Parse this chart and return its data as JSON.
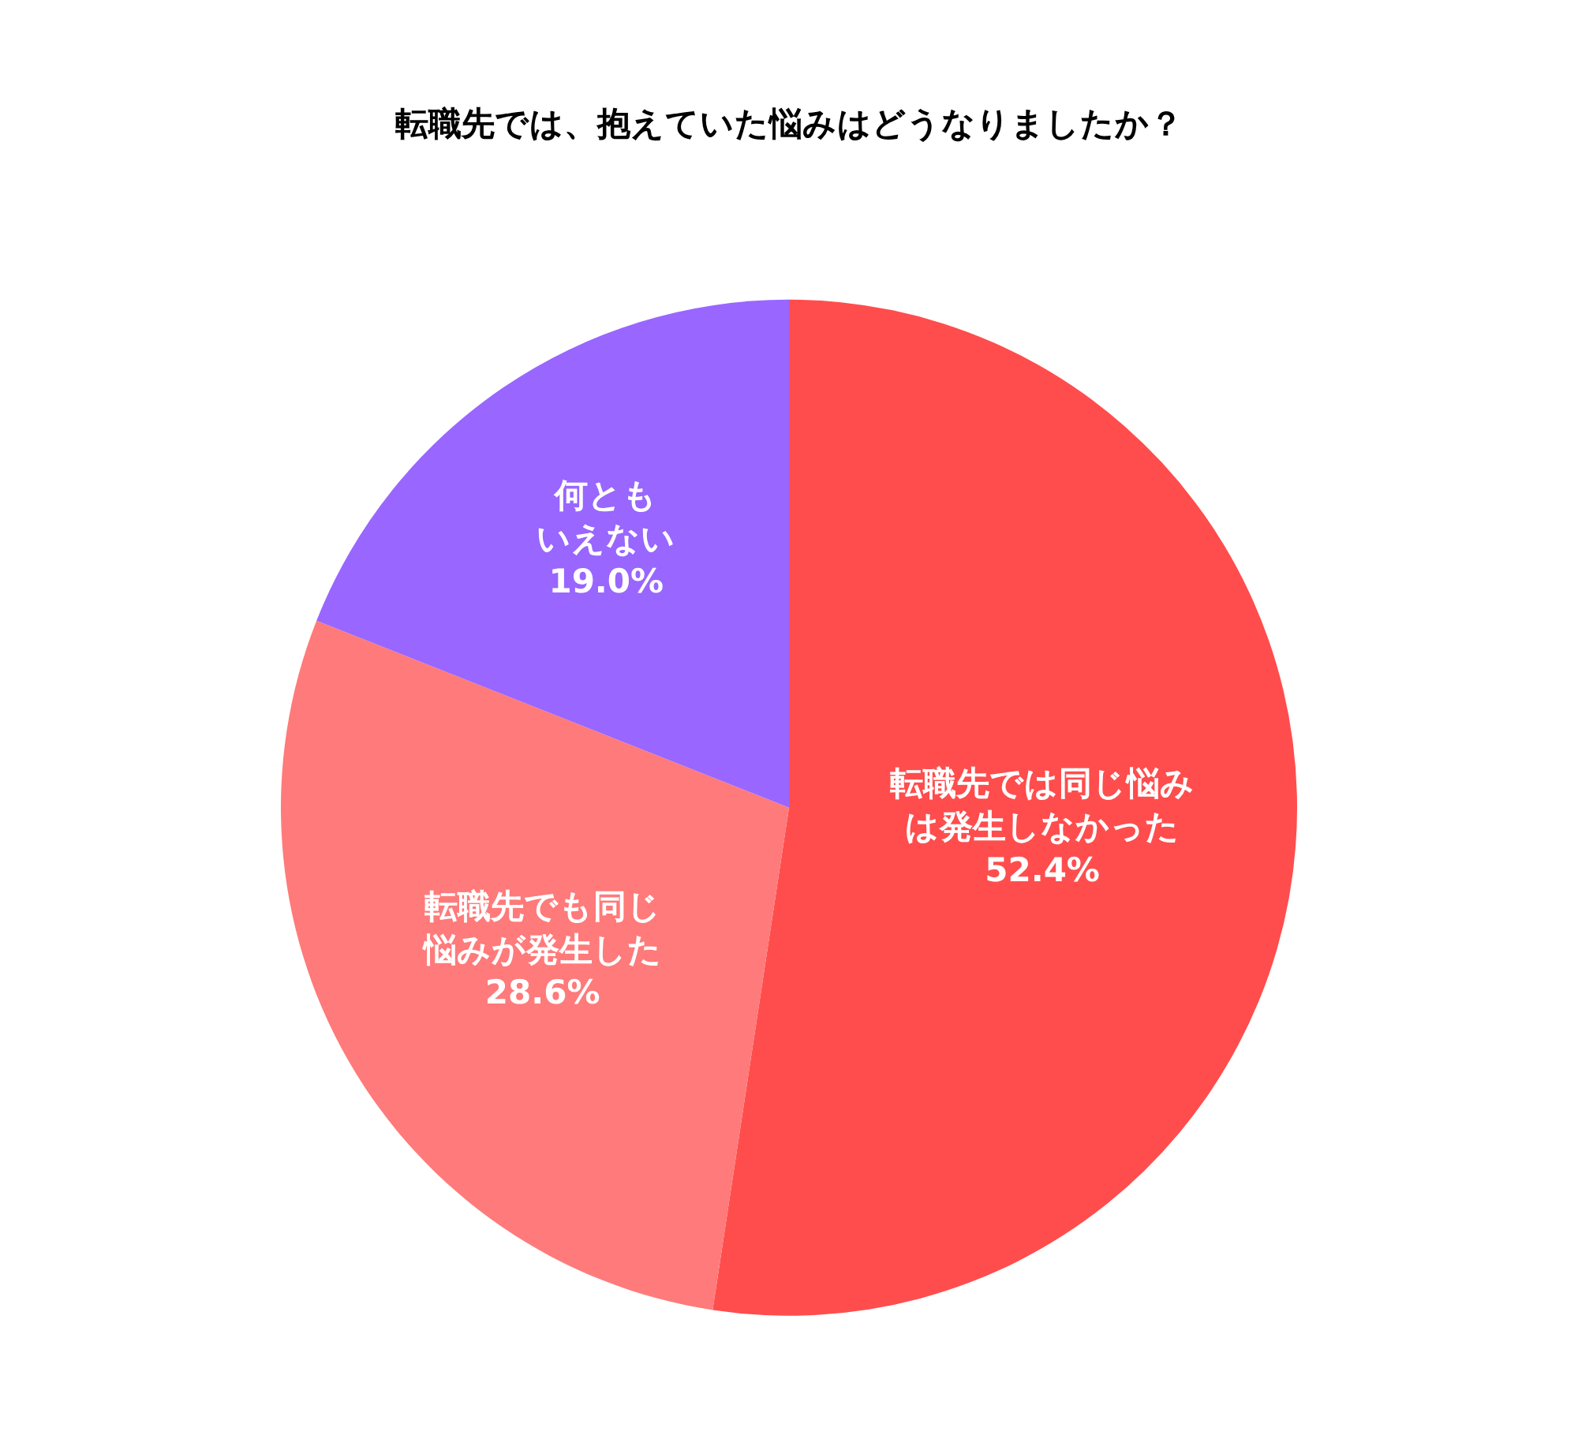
{
  "chart_data": {
    "type": "pie",
    "title": "転職先では、抱えていた悩みはどうなりましたか？",
    "categories": [
      "転職先では同じ悩みは発生しなかった",
      "転職先でも同じ悩みが発生した",
      "何ともいえない"
    ],
    "values": [
      52.4,
      28.6,
      19.0
    ],
    "value_labels": [
      "52.4%",
      "28.6%",
      "19.0%"
    ],
    "colors": [
      "#ff4d4d",
      "#ff7a7a",
      "#9966ff"
    ],
    "legend": false
  }
}
